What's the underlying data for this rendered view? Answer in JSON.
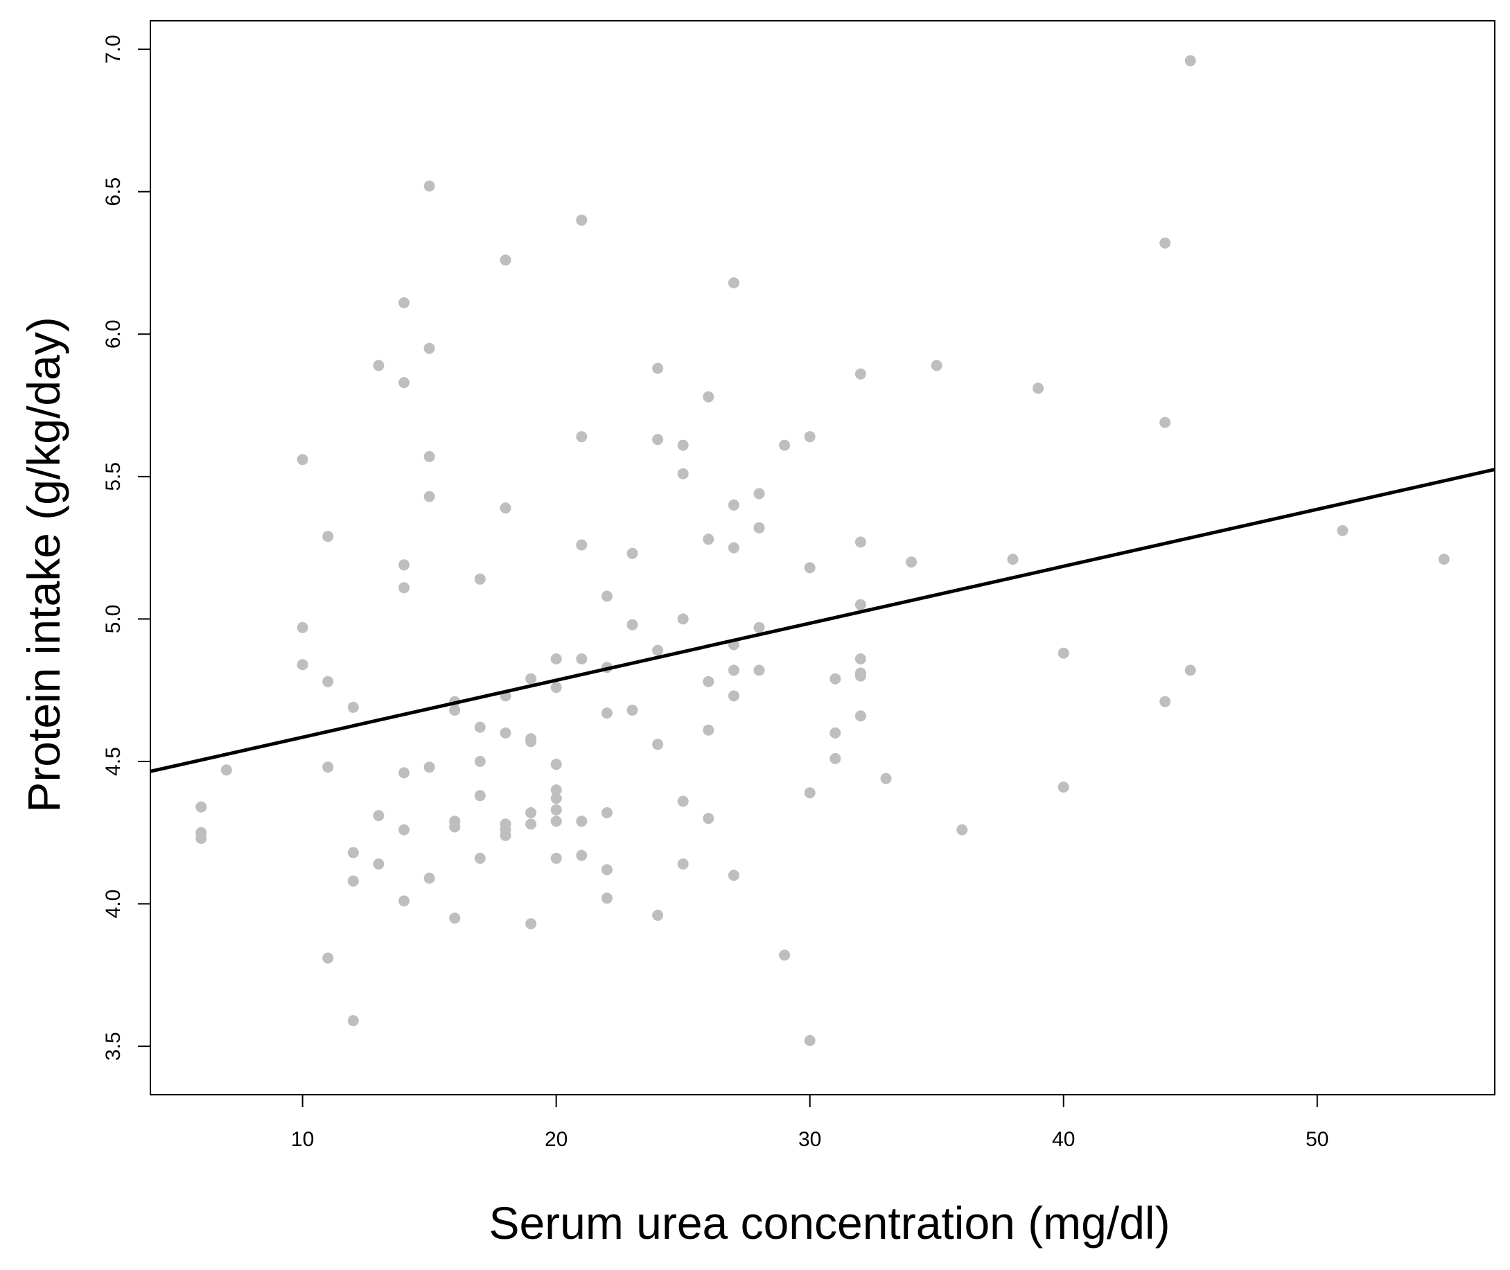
{
  "chart_data": {
    "type": "scatter",
    "title": "",
    "xlabel": "Serum urea concentration (mg/dl)",
    "ylabel": "Protein intake (g/kg/day)",
    "xlim": [
      4,
      57
    ],
    "ylim": [
      3.33,
      7.1
    ],
    "x_ticks": [
      10,
      20,
      30,
      40,
      50
    ],
    "y_ticks": [
      3.5,
      4.0,
      4.5,
      5.0,
      5.5,
      6.0,
      6.5,
      7.0
    ],
    "x_tick_labels": [
      "10",
      "20",
      "30",
      "40",
      "50"
    ],
    "y_tick_labels": [
      "3.5",
      "4.0",
      "4.5",
      "5.0",
      "5.5",
      "6.0",
      "6.5",
      "7.0"
    ],
    "grid": false,
    "point_color": "#bebebe",
    "line_color": "#000000",
    "regression_line": {
      "x": [
        4,
        57
      ],
      "y": [
        4.465,
        5.525
      ]
    },
    "points": [
      [
        6,
        4.34
      ],
      [
        6,
        4.25
      ],
      [
        6,
        4.23
      ],
      [
        7,
        4.47
      ],
      [
        10,
        5.56
      ],
      [
        10,
        4.97
      ],
      [
        10,
        4.84
      ],
      [
        11,
        5.29
      ],
      [
        11,
        4.78
      ],
      [
        11,
        4.48
      ],
      [
        11,
        3.81
      ],
      [
        12,
        4.69
      ],
      [
        12,
        4.18
      ],
      [
        12,
        4.08
      ],
      [
        12,
        3.59
      ],
      [
        13,
        5.89
      ],
      [
        13,
        4.31
      ],
      [
        13,
        4.14
      ],
      [
        14,
        6.11
      ],
      [
        14,
        5.83
      ],
      [
        14,
        5.19
      ],
      [
        14,
        5.11
      ],
      [
        14,
        4.46
      ],
      [
        14,
        4.26
      ],
      [
        14,
        4.01
      ],
      [
        15,
        6.52
      ],
      [
        15,
        5.95
      ],
      [
        15,
        5.57
      ],
      [
        15,
        5.43
      ],
      [
        15,
        4.48
      ],
      [
        15,
        4.09
      ],
      [
        16,
        4.71
      ],
      [
        16,
        4.68
      ],
      [
        16,
        4.29
      ],
      [
        16,
        4.27
      ],
      [
        16,
        3.95
      ],
      [
        17,
        5.14
      ],
      [
        17,
        4.62
      ],
      [
        17,
        4.5
      ],
      [
        17,
        4.38
      ],
      [
        17,
        4.16
      ],
      [
        18,
        6.26
      ],
      [
        18,
        5.39
      ],
      [
        18,
        4.73
      ],
      [
        18,
        4.6
      ],
      [
        18,
        4.28
      ],
      [
        18,
        4.26
      ],
      [
        18,
        4.24
      ],
      [
        19,
        4.79
      ],
      [
        19,
        4.58
      ],
      [
        19,
        4.57
      ],
      [
        19,
        4.32
      ],
      [
        19,
        4.28
      ],
      [
        19,
        3.93
      ],
      [
        20,
        4.86
      ],
      [
        20,
        4.76
      ],
      [
        20,
        4.49
      ],
      [
        20,
        4.4
      ],
      [
        20,
        4.37
      ],
      [
        20,
        4.33
      ],
      [
        20,
        4.29
      ],
      [
        20,
        4.16
      ],
      [
        21,
        6.4
      ],
      [
        21,
        5.64
      ],
      [
        21,
        5.26
      ],
      [
        21,
        4.86
      ],
      [
        21,
        4.29
      ],
      [
        21,
        4.17
      ],
      [
        22,
        5.08
      ],
      [
        22,
        4.83
      ],
      [
        22,
        4.67
      ],
      [
        22,
        4.32
      ],
      [
        22,
        4.12
      ],
      [
        22,
        4.02
      ],
      [
        23,
        5.23
      ],
      [
        23,
        4.98
      ],
      [
        23,
        4.68
      ],
      [
        24,
        5.88
      ],
      [
        24,
        5.63
      ],
      [
        24,
        4.89
      ],
      [
        24,
        4.56
      ],
      [
        24,
        3.96
      ],
      [
        25,
        5.61
      ],
      [
        25,
        5.51
      ],
      [
        25,
        5.0
      ],
      [
        25,
        4.36
      ],
      [
        25,
        4.14
      ],
      [
        26,
        5.78
      ],
      [
        26,
        5.28
      ],
      [
        26,
        4.78
      ],
      [
        26,
        4.61
      ],
      [
        26,
        4.3
      ],
      [
        27,
        6.18
      ],
      [
        27,
        5.4
      ],
      [
        27,
        5.25
      ],
      [
        27,
        4.91
      ],
      [
        27,
        4.82
      ],
      [
        27,
        4.73
      ],
      [
        27,
        4.1
      ],
      [
        28,
        5.44
      ],
      [
        28,
        5.32
      ],
      [
        28,
        4.97
      ],
      [
        28,
        4.82
      ],
      [
        29,
        5.61
      ],
      [
        29,
        3.82
      ],
      [
        30,
        5.64
      ],
      [
        30,
        5.18
      ],
      [
        30,
        4.39
      ],
      [
        30,
        3.52
      ],
      [
        31,
        4.79
      ],
      [
        31,
        4.6
      ],
      [
        31,
        4.51
      ],
      [
        32,
        5.86
      ],
      [
        32,
        5.27
      ],
      [
        32,
        5.05
      ],
      [
        32,
        4.86
      ],
      [
        32,
        4.81
      ],
      [
        32,
        4.8
      ],
      [
        32,
        4.66
      ],
      [
        33,
        4.44
      ],
      [
        34,
        5.2
      ],
      [
        35,
        5.89
      ],
      [
        36,
        4.26
      ],
      [
        38,
        5.21
      ],
      [
        39,
        5.81
      ],
      [
        40,
        4.88
      ],
      [
        40,
        4.41
      ],
      [
        44,
        6.32
      ],
      [
        44,
        5.69
      ],
      [
        44,
        4.71
      ],
      [
        45,
        6.96
      ],
      [
        45,
        4.82
      ],
      [
        51,
        5.31
      ],
      [
        55,
        5.21
      ]
    ]
  }
}
